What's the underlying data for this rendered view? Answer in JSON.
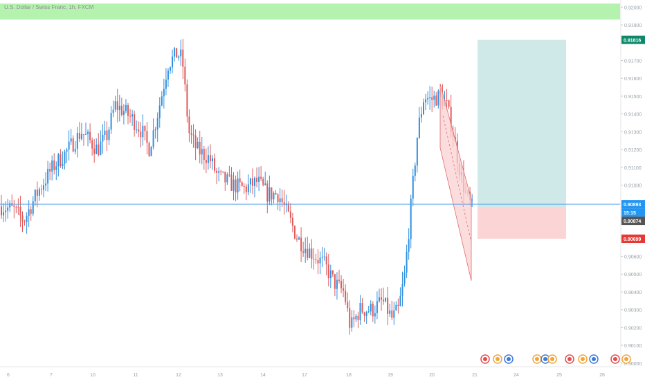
{
  "header": {
    "symbol_title": "U.S. Dollar / Swiss Franc, 1h, FXCM"
  },
  "colors": {
    "up": "#2f8fe0",
    "down": "#e05a5a",
    "background": "#ffffff",
    "resistance_zone": "#b5f2b0",
    "target_zone": "#cfe9e8",
    "stop_zone": "#fbd5d6",
    "channel_fill": "#fbd2d3",
    "channel_line": "#e06a6a",
    "price_line": "#5aa3e8",
    "tag_green": "#0e8a6a",
    "tag_blue": "#2196f3",
    "tag_dark": "#555555",
    "tag_red": "#e53935",
    "axis_text": "#9aa0a6"
  },
  "tags": {
    "target": "0.91816",
    "current": "0.90893",
    "countdown": "15:15",
    "entry": "0.90874",
    "stop": "0.90699"
  },
  "chart_data": {
    "type": "candlestick",
    "instrument": "USDCHF",
    "timeframe": "1h",
    "source": "FXCM",
    "price_axis": {
      "ticks": [
        "0.92000",
        "0.91900",
        "0.91700",
        "0.91600",
        "0.91500",
        "0.91400",
        "0.91300",
        "0.91200",
        "0.91100",
        "0.91000",
        "0.90900",
        "0.90800",
        "0.90700",
        "0.90600",
        "0.90500",
        "0.90400",
        "0.90300",
        "0.90200",
        "0.90100",
        "0.90000"
      ],
      "range": [
        0.8998,
        0.9204
      ]
    },
    "time_axis": {
      "ticks": [
        "6",
        "7",
        "10",
        "11",
        "12",
        "13",
        "14",
        "17",
        "18",
        "19",
        "20",
        "21",
        "24",
        "25",
        "26"
      ]
    },
    "candle_count": 224,
    "path_anchors": [
      [
        0,
        0.9088
      ],
      [
        8,
        0.9086
      ],
      [
        14,
        0.908
      ],
      [
        22,
        0.9095
      ],
      [
        32,
        0.911
      ],
      [
        40,
        0.9118
      ],
      [
        50,
        0.913
      ],
      [
        60,
        0.912
      ],
      [
        66,
        0.9128
      ],
      [
        71,
        0.9145
      ],
      [
        76,
        0.9142
      ],
      [
        82,
        0.9137
      ],
      [
        88,
        0.913
      ],
      [
        92,
        0.912
      ],
      [
        95,
        0.913
      ],
      [
        100,
        0.915
      ],
      [
        104,
        0.9168
      ],
      [
        110,
        0.9174
      ],
      [
        113,
        0.9171
      ],
      [
        117,
        0.913
      ],
      [
        122,
        0.912
      ],
      [
        130,
        0.9115
      ],
      [
        135,
        0.9105
      ],
      [
        145,
        0.91
      ],
      [
        152,
        0.9098
      ],
      [
        160,
        0.9102
      ],
      [
        166,
        0.9095
      ],
      [
        173,
        0.9095
      ],
      [
        178,
        0.9085
      ],
      [
        185,
        0.907
      ],
      [
        190,
        0.9065
      ],
      [
        196,
        0.906
      ],
      [
        202,
        0.9055
      ],
      [
        208,
        0.9045
      ],
      [
        214,
        0.904
      ],
      [
        218,
        0.902
      ],
      [
        224,
        0.903
      ],
      [
        232,
        0.903
      ],
      [
        238,
        0.9035
      ],
      [
        244,
        0.9025
      ],
      [
        248,
        0.903
      ],
      [
        252,
        0.905
      ],
      [
        256,
        0.909
      ],
      [
        260,
        0.913
      ],
      [
        264,
        0.915
      ],
      [
        268,
        0.9148
      ],
      [
        274,
        0.915
      ],
      [
        278,
        0.9145
      ],
      [
        282,
        0.913
      ],
      [
        286,
        0.911
      ],
      [
        290,
        0.9095
      ],
      [
        294,
        0.9087
      ]
    ],
    "resistance_zone": [
      0.9193,
      0.9202
    ],
    "descending_channel": {
      "upper": [
        [
          0.9157,
          "20"
        ],
        [
          0.9092,
          "21"
        ]
      ],
      "lower": [
        [
          0.9121,
          "20"
        ],
        [
          0.9058,
          "21"
        ]
      ]
    },
    "position": {
      "side": "long",
      "entry": 0.90874,
      "target": 0.91816,
      "stop": 0.90699
    },
    "current_price": 0.90893
  }
}
